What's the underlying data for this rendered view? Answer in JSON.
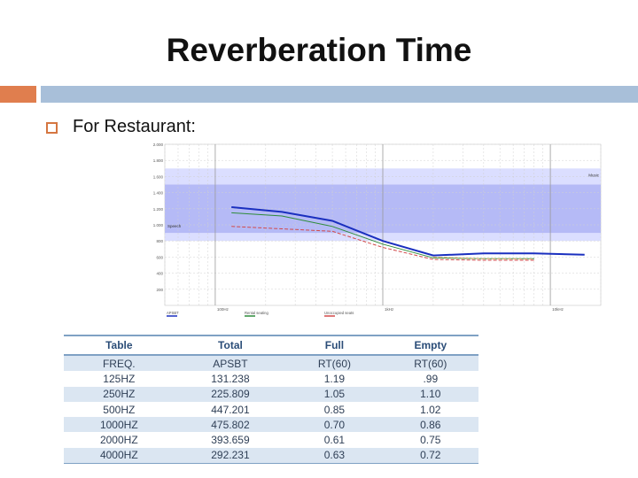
{
  "slide": {
    "title": "Reverberation Time",
    "bullet": "For Restaurant:"
  },
  "colors": {
    "accent_orange": "#e07e4e",
    "accent_blue": "#a8bfd9",
    "band_outer": "#d9dcff",
    "band_inner": "#b3b7f6",
    "series_total": "#1a2fbf",
    "series_full": "#2e8b3a",
    "series_empty": "#d24a4a"
  },
  "chart_data": {
    "type": "line",
    "x_scale": "log",
    "x_ticks": [
      "100Hz",
      "1kHz",
      "10kHz"
    ],
    "y_ticks": [
      "2.000",
      "1.800",
      "1.600",
      "1.400",
      "1.200",
      "1.000",
      "800",
      "600",
      "400",
      "200"
    ],
    "bands": [
      {
        "name": "Music",
        "from": 800,
        "to": 1700
      },
      {
        "name": "Speech",
        "from": 900,
        "to": 1500
      }
    ],
    "series": [
      {
        "name": "",
        "color": "#1a2fbf",
        "x": [
          125,
          250,
          500,
          1000,
          2000,
          4000,
          8000,
          16000
        ],
        "y": [
          1220,
          1160,
          1050,
          800,
          620,
          645,
          645,
          630
        ]
      },
      {
        "name": "",
        "color": "#2e8b3a",
        "x": [
          125,
          250,
          500,
          1000,
          2000,
          4000,
          8000
        ],
        "y": [
          1150,
          1110,
          980,
          760,
          590,
          580,
          580
        ]
      },
      {
        "name": "",
        "color": "#d24a4a",
        "x": [
          125,
          250,
          500,
          1000,
          2000,
          4000,
          8000
        ],
        "y": [
          980,
          950,
          920,
          720,
          570,
          560,
          560
        ]
      },
      {
        "name": "",
        "color": "#d9a46a",
        "x": [
          2000,
          4000,
          8000
        ],
        "y": [
          600,
          580,
          575
        ]
      }
    ],
    "legend": [
      {
        "label": "APSBT",
        "color": "#1a2fbf"
      },
      {
        "label": "Rental seating",
        "color": "#2e8b3a"
      },
      {
        "label": "Unoccupied seats",
        "color": "#d24a4a"
      }
    ],
    "band_labels": {
      "music": "Music",
      "speech": "Speech"
    }
  },
  "table": {
    "headers": [
      "Table",
      "Total",
      "Full",
      "Empty"
    ],
    "rows": [
      [
        "FREQ.",
        "APSBT",
        "RT(60)",
        "RT(60)"
      ],
      [
        "125HZ",
        "131.238",
        "1.19",
        ".99"
      ],
      [
        "250HZ",
        "225.809",
        "1.05",
        "1.10"
      ],
      [
        "500HZ",
        "447.201",
        "0.85",
        "1.02"
      ],
      [
        "1000HZ",
        "475.802",
        "0.70",
        "0.86"
      ],
      [
        "2000HZ",
        "393.659",
        "0.61",
        "0.75"
      ],
      [
        "4000HZ",
        "292.231",
        "0.63",
        "0.72"
      ]
    ]
  }
}
